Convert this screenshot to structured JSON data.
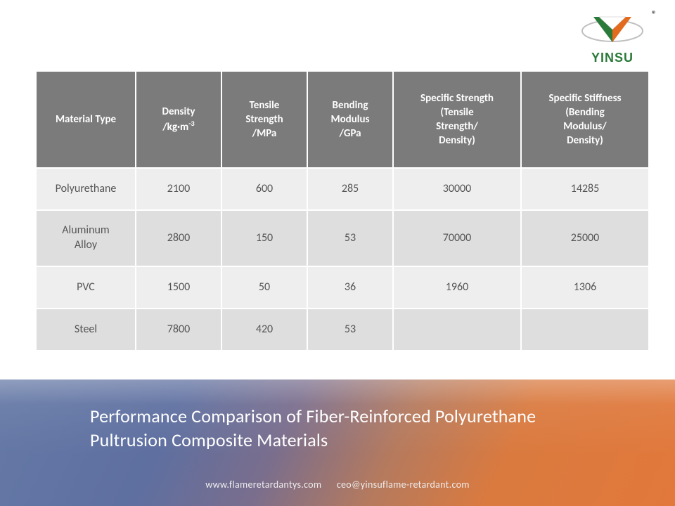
{
  "logo": {
    "text": "YINSU",
    "text_color": "#2b7a3a",
    "colors": {
      "green": "#2b7a3a",
      "orange": "#e36b1f",
      "gray": "#bfbfbf",
      "white": "#ffffff"
    },
    "registered_mark": "®"
  },
  "table": {
    "header_bg": "#7b7b7b",
    "header_fg": "#ffffff",
    "row_odd_bg": "#eeeeee",
    "row_even_bg": "#dedede",
    "cell_fg": "#555555",
    "border_spacing": 2,
    "header_fontsize": 15,
    "cell_fontsize": 16,
    "columns": [
      {
        "key": "material",
        "label_html": "Material Type",
        "width": 140
      },
      {
        "key": "density",
        "label_html": "Density<br>/kg·m<span class=\"sup\">-3</span>",
        "width": 120
      },
      {
        "key": "tensile",
        "label_html": "Tensile<br>Strength<br>/MPa",
        "width": 120
      },
      {
        "key": "bending",
        "label_html": "Bending<br>Modulus<br>/GPa",
        "width": 120
      },
      {
        "key": "spec_str",
        "label_html": "Specific Strength<br>(Tensile<br>Strength/<br>Density)",
        "width": 180
      },
      {
        "key": "spec_stf",
        "label_html": "Specific Stiffness<br>(Bending<br>Modulus/<br>Density)",
        "width": 180
      }
    ],
    "rows": [
      {
        "height": "short",
        "cells": [
          "Polyurethane",
          "2100",
          "600",
          "285",
          "30000",
          "14285"
        ]
      },
      {
        "height": "tall",
        "cells": [
          "Aluminum<br>Alloy",
          "2800",
          "150",
          "53",
          "70000",
          "25000"
        ]
      },
      {
        "height": "short",
        "cells": [
          "PVC",
          "1500",
          "50",
          "36",
          "1960",
          "1306"
        ]
      },
      {
        "height": "short",
        "cells": [
          "Steel",
          "7800",
          "420",
          "53",
          "",
          ""
        ]
      }
    ]
  },
  "title": "Performance Comparison of Fiber-Reinforced Polyurethane Pultrusion Composite Materials",
  "title_color": "#ffffff",
  "title_fontsize": 26,
  "contact": {
    "website": "www.flameretardantys.com",
    "email": "ceo@yinsuflame-retardant.com",
    "color": "#eeeeee",
    "fontsize": 14
  },
  "band_gradient_stops": [
    "#6579a6",
    "#5e6fa0",
    "#7a6e8d",
    "#b57a5e",
    "#da7a3f",
    "#e2783b"
  ]
}
